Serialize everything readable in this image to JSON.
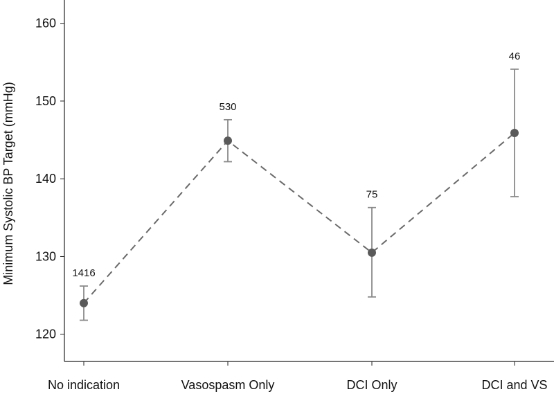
{
  "chart_data": {
    "type": "line",
    "title": "",
    "xlabel": "",
    "ylabel": "Minimum Systolic BP Target (mmHg)",
    "categories": [
      "No indication",
      "Vasospasm Only",
      "DCI Only",
      "DCI and VS"
    ],
    "values": [
      124.0,
      144.9,
      130.5,
      145.9
    ],
    "ci_lower": [
      121.8,
      142.2,
      124.8,
      137.7
    ],
    "ci_upper": [
      126.2,
      147.6,
      136.3,
      154.1
    ],
    "n_labels": [
      "1416",
      "530",
      "75",
      "46"
    ],
    "ylim": [
      116.5,
      163
    ],
    "yticks": [
      120,
      130,
      140,
      150,
      160
    ],
    "grid": false,
    "legend": "none",
    "colors": {
      "marker": "#5a5a5a",
      "line": "#6a6a6a",
      "errorbar": "#8a8a8a",
      "axis": "#222222"
    }
  }
}
